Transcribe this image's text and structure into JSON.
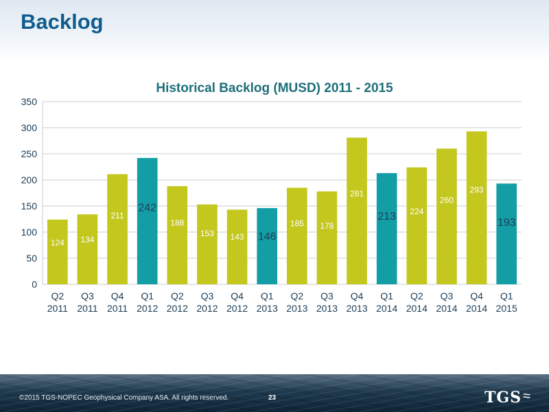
{
  "page": {
    "title": "Backlog",
    "copyright": "©2015 TGS-NOPEC Geophysical Company ASA. All rights reserved.",
    "page_number": "23",
    "logo_text": "TGS",
    "logo_icon": "seismic-wave-icon"
  },
  "chart_data": {
    "type": "bar",
    "title": "Historical Backlog (MUSD) 2011 - 2015",
    "xlabel": "",
    "ylabel": "",
    "ylim": [
      0,
      350
    ],
    "yticks": [
      0,
      50,
      100,
      150,
      200,
      250,
      300,
      350
    ],
    "grid": true,
    "categories": [
      [
        "Q2",
        "2011"
      ],
      [
        "Q3",
        "2011"
      ],
      [
        "Q4",
        "2011"
      ],
      [
        "Q1",
        "2012"
      ],
      [
        "Q2",
        "2012"
      ],
      [
        "Q3",
        "2012"
      ],
      [
        "Q4",
        "2012"
      ],
      [
        "Q1",
        "2013"
      ],
      [
        "Q2",
        "2013"
      ],
      [
        "Q3",
        "2013"
      ],
      [
        "Q4",
        "2013"
      ],
      [
        "Q1",
        "2014"
      ],
      [
        "Q2",
        "2014"
      ],
      [
        "Q3",
        "2014"
      ],
      [
        "Q4",
        "2014"
      ],
      [
        "Q1",
        "2015"
      ]
    ],
    "values": [
      124,
      134,
      211,
      242,
      188,
      153,
      143,
      146,
      185,
      178,
      281,
      213,
      224,
      260,
      293,
      193
    ],
    "highlight": [
      false,
      false,
      false,
      true,
      false,
      false,
      false,
      true,
      false,
      false,
      false,
      true,
      false,
      false,
      false,
      true
    ],
    "colors": {
      "default_bar": "#c4c71e",
      "highlight_bar": "#139ea5",
      "label_default": "#ffffff",
      "label_highlight": "#1c3f57",
      "grid": "#c9cdd1",
      "axis_text": "#1a3b54"
    }
  }
}
